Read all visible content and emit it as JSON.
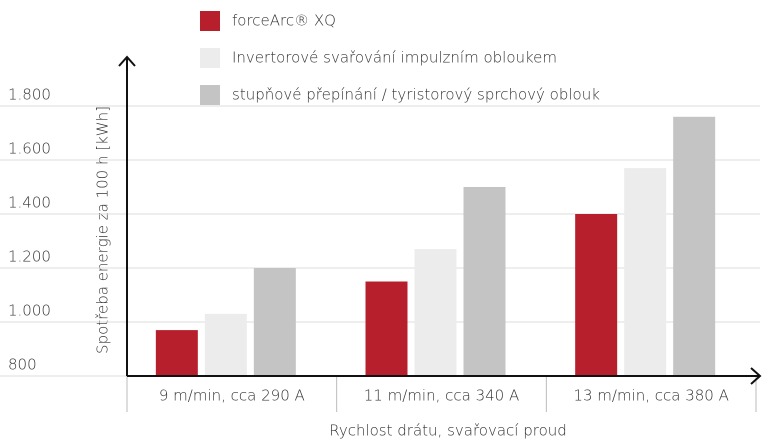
{
  "chart_data": {
    "type": "bar",
    "categories": [
      "9 m/min, cca 290 A",
      "11 m/min, cca 340 A",
      "13 m/min, cca 380 A"
    ],
    "series": [
      {
        "name": "forceArc® XQ",
        "color": "#b81f2d",
        "values": [
          970,
          1150,
          1400
        ]
      },
      {
        "name": "Invertorové svařování impulzním obloukem",
        "color": "#ececec",
        "values": [
          1030,
          1270,
          1570
        ]
      },
      {
        "name": "stupňové přepínání / tyristorový sprchový oblouk",
        "color": "#c4c4c4",
        "values": [
          1200,
          1500,
          1760
        ]
      }
    ],
    "xlabel": "Rychlost drátu, svařovací proud",
    "ylabel": "Spotřeba energie za 100 h [kWh]",
    "ylim": [
      800,
      2000
    ],
    "yticks": [
      {
        "value": 800,
        "label": "800"
      },
      {
        "value": 1000,
        "label": "1.000"
      },
      {
        "value": 1200,
        "label": "1.200"
      },
      {
        "value": 1400,
        "label": "1.400"
      },
      {
        "value": 1600,
        "label": "1.600"
      },
      {
        "value": 1800,
        "label": "1.800"
      }
    ],
    "grid": true,
    "legend": "top"
  }
}
